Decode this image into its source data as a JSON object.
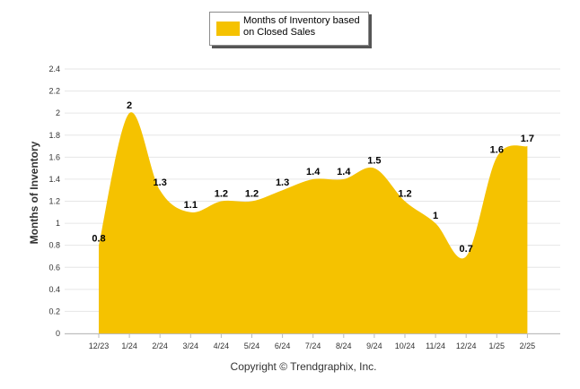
{
  "chart_data": {
    "type": "area",
    "categories": [
      "12/23",
      "1/24",
      "2/24",
      "3/24",
      "4/24",
      "5/24",
      "6/24",
      "7/24",
      "8/24",
      "9/24",
      "10/24",
      "11/24",
      "12/24",
      "1/25",
      "2/25"
    ],
    "series": [
      {
        "name": "Months of Inventory based on Closed Sales",
        "values": [
          0.8,
          2,
          1.3,
          1.1,
          1.2,
          1.2,
          1.3,
          1.4,
          1.4,
          1.5,
          1.2,
          1,
          0.7,
          1.6,
          1.7
        ],
        "labels": [
          "0.8",
          "2",
          "1.3",
          "1.1",
          "1.2",
          "1.2",
          "1.3",
          "1.4",
          "1.4",
          "1.5",
          "1.2",
          "1",
          "0.7",
          "1.6",
          "1.7"
        ],
        "color": "#F5C200"
      }
    ],
    "ylabel": "Months of Inventory",
    "xlabel": "",
    "ylim": [
      0,
      2.4
    ],
    "yticks": [
      "0",
      "0.2",
      "0.4",
      "0.6",
      "0.8",
      "1",
      "1.2",
      "1.4",
      "1.6",
      "1.8",
      "2",
      "2.2",
      "2.4"
    ],
    "grid": true,
    "legend_position": "top-center"
  },
  "legend": {
    "line1": "Months of Inventory based",
    "line2": "on Closed Sales",
    "color": "#F5C200"
  },
  "footer": {
    "copyright": "Copyright © Trendgraphix, Inc."
  }
}
